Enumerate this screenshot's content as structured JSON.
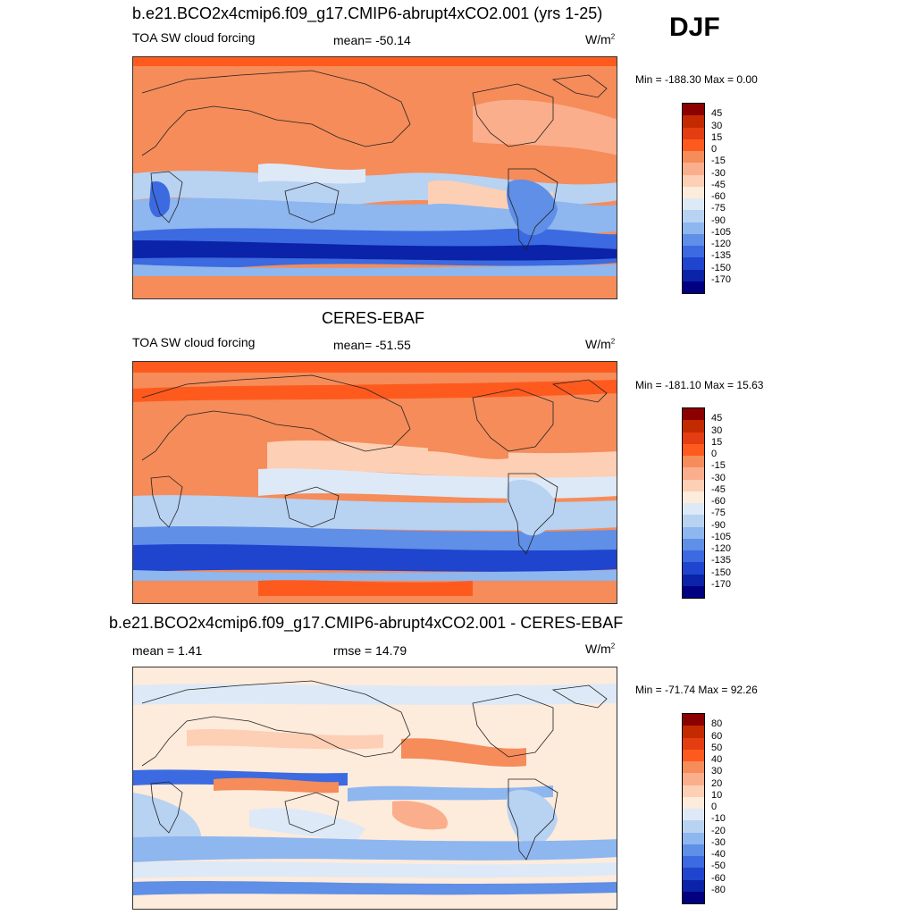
{
  "season": "DJF",
  "panels": [
    {
      "title": "b.e21.BCO2x4cmip6.f09_g17.CMIP6-abrupt4xCO2.001 (yrs 1-25)",
      "left_label": "TOA SW cloud forcing",
      "center_label": "mean= -50.14",
      "units_base": "W/m",
      "units_sup": "2",
      "minmax": "Min = -188.30 Max =    0.00",
      "colorbar_ticks": [
        "45",
        "30",
        "15",
        "0",
        "-15",
        "-30",
        "-45",
        "-60",
        "-75",
        "-90",
        "-105",
        "-120",
        "-135",
        "-150",
        "-170"
      ],
      "colorbar_colors": [
        "#8b0000",
        "#c32a00",
        "#e53d12",
        "#ff5a1e",
        "#f58c5a",
        "#fbae8c",
        "#fdcfb4",
        "#fdebdc",
        "#dde9f7",
        "#b8d2f2",
        "#8eb6ef",
        "#5f8fe6",
        "#3c6ae0",
        "#1f45cf",
        "#0a23a8",
        "#000080"
      ]
    },
    {
      "title": "CERES-EBAF",
      "left_label": "TOA SW cloud forcing",
      "center_label": "mean= -51.55",
      "units_base": "W/m",
      "units_sup": "2",
      "minmax": "Min = -181.10 Max =  15.63",
      "colorbar_ticks": [
        "45",
        "30",
        "15",
        "0",
        "-15",
        "-30",
        "-45",
        "-60",
        "-75",
        "-90",
        "-105",
        "-120",
        "-135",
        "-150",
        "-170"
      ],
      "colorbar_colors": [
        "#8b0000",
        "#c32a00",
        "#e53d12",
        "#ff5a1e",
        "#f58c5a",
        "#fbae8c",
        "#fdcfb4",
        "#fdebdc",
        "#dde9f7",
        "#b8d2f2",
        "#8eb6ef",
        "#5f8fe6",
        "#3c6ae0",
        "#1f45cf",
        "#0a23a8",
        "#000080"
      ]
    },
    {
      "title": "b.e21.BCO2x4cmip6.f09_g17.CMIP6-abrupt4xCO2.001 - CERES-EBAF",
      "left_label": "mean =   1.41",
      "center_label": "rmse =  14.79",
      "units_base": "W/m",
      "units_sup": "2",
      "minmax": "Min = -71.74 Max =  92.26",
      "colorbar_ticks": [
        "80",
        "60",
        "50",
        "40",
        "30",
        "20",
        "10",
        "0",
        "-10",
        "-20",
        "-30",
        "-40",
        "-50",
        "-60",
        "-80"
      ],
      "colorbar_colors": [
        "#8b0000",
        "#c32a00",
        "#e53d12",
        "#ff5a1e",
        "#f58c5a",
        "#fbae8c",
        "#fdcfb4",
        "#fdebdc",
        "#dde9f7",
        "#b8d2f2",
        "#8eb6ef",
        "#5f8fe6",
        "#3c6ae0",
        "#1f45cf",
        "#0a23a8",
        "#000080"
      ]
    }
  ]
}
